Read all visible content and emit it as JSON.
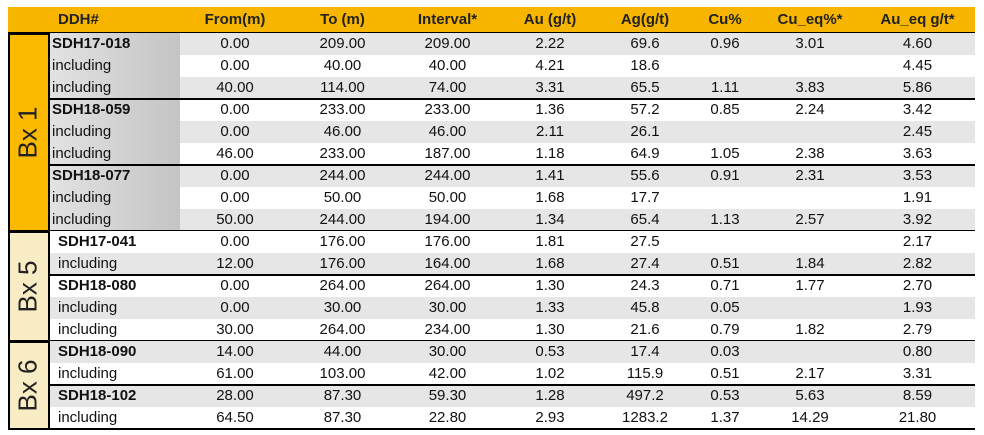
{
  "table": {
    "header": [
      "DDH#",
      "From(m)",
      "To (m)",
      "Interval*",
      "Au (g/t)",
      "Ag(g/t)",
      "Cu%",
      "Cu_eq%*",
      "Au_eq g/t*"
    ],
    "groups": [
      {
        "label": "Bx 1",
        "rows": [
          [
            "SDH17-018",
            "0.00",
            "209.00",
            "209.00",
            "2.22",
            "69.6",
            "0.96",
            "3.01",
            "4.60"
          ],
          [
            "including",
            "0.00",
            "40.00",
            "40.00",
            "4.21",
            "18.6",
            null,
            null,
            "4.45"
          ],
          [
            "including",
            "40.00",
            "114.00",
            "74.00",
            "3.31",
            "65.5",
            "1.11",
            "3.83",
            "5.86"
          ],
          [
            "SDH18-059",
            "0.00",
            "233.00",
            "233.00",
            "1.36",
            "57.2",
            "0.85",
            "2.24",
            "3.42"
          ],
          [
            "including",
            "0.00",
            "46.00",
            "46.00",
            "2.11",
            "26.1",
            null,
            null,
            "2.45"
          ],
          [
            "including",
            "46.00",
            "233.00",
            "187.00",
            "1.18",
            "64.9",
            "1.05",
            "2.38",
            "3.63"
          ],
          [
            "SDH18-077",
            "0.00",
            "244.00",
            "244.00",
            "1.41",
            "55.6",
            "0.91",
            "2.31",
            "3.53"
          ],
          [
            "including",
            "0.00",
            "50.00",
            "50.00",
            "1.68",
            "17.7",
            null,
            null,
            "1.91"
          ],
          [
            "including",
            "50.00",
            "244.00",
            "194.00",
            "1.34",
            "65.4",
            "1.13",
            "2.57",
            "3.92"
          ]
        ]
      },
      {
        "label": "Bx 5",
        "rows": [
          [
            "SDH17-041",
            "0.00",
            "176.00",
            "176.00",
            "1.81",
            "27.5",
            null,
            null,
            "2.17"
          ],
          [
            "including",
            "12.00",
            "176.00",
            "164.00",
            "1.68",
            "27.4",
            "0.51",
            "1.84",
            "2.82"
          ],
          [
            "SDH18-080",
            "0.00",
            "264.00",
            "264.00",
            "1.30",
            "24.3",
            "0.71",
            "1.77",
            "2.70"
          ],
          [
            "including",
            "0.00",
            "30.00",
            "30.00",
            "1.33",
            "45.8",
            "0.05",
            null,
            "1.93"
          ],
          [
            "including",
            "30.00",
            "264.00",
            "234.00",
            "1.30",
            "21.6",
            "0.79",
            "1.82",
            "2.79"
          ]
        ]
      },
      {
        "label": "Bx 6",
        "rows": [
          [
            "SDH18-090",
            "14.00",
            "44.00",
            "30.00",
            "0.53",
            "17.4",
            "0.03",
            null,
            "0.80"
          ],
          [
            "including",
            "61.00",
            "103.00",
            "42.00",
            "1.02",
            "115.9",
            "0.51",
            "2.17",
            "3.31"
          ],
          [
            "SDH18-102",
            "28.00",
            "87.30",
            "59.30",
            "1.28",
            "497.2",
            "0.53",
            "5.63",
            "8.59"
          ],
          [
            "including",
            "64.50",
            "87.30",
            "22.80",
            "2.93",
            "1283.2",
            "1.37",
            "14.29",
            "21.80"
          ]
        ]
      }
    ]
  }
}
